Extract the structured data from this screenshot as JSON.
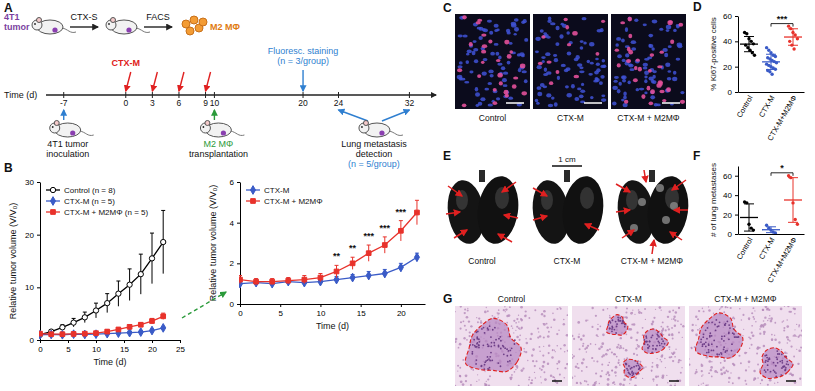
{
  "panel_labels": [
    "A",
    "B",
    "C",
    "D",
    "E",
    "F",
    "G"
  ],
  "schematic": {
    "tumor_label": [
      "4T1",
      "tumor"
    ],
    "steps": [
      "CTX-S",
      "FACS"
    ],
    "cell_label": "M2 MΦ",
    "axis_label": "Time (d)",
    "xlim": [
      -9,
      35
    ],
    "ticks": [
      -7,
      0,
      3,
      6,
      9,
      10,
      20,
      24,
      32
    ],
    "treatment": {
      "label": "CTX-M",
      "days": [
        0,
        3,
        6,
        9
      ]
    },
    "inoculation": {
      "day": -7,
      "label": [
        "4T1 tumor",
        "inoculation"
      ]
    },
    "transplantation": {
      "day": 10,
      "label": [
        "M2 MΦ",
        "transplantation"
      ]
    },
    "staining": {
      "day": 20,
      "label": [
        "Fluoresc. staining",
        "(n = 3/group)"
      ]
    },
    "detection": {
      "days": [
        24,
        32
      ],
      "label": [
        "Lung metastasis",
        "detection",
        "(n = 5/group)"
      ]
    }
  },
  "images": {
    "C": {
      "labels": [
        "Control",
        "CTX-M",
        "CTX-M + M2MΦ"
      ]
    },
    "E": {
      "labels": [
        "Control",
        "CTX-M",
        "CTX-M + M2MΦ"
      ],
      "scale_label": "1 cm"
    },
    "G": {
      "labels": [
        "Control",
        "CTX-M",
        "CTX-M + M2MΦ"
      ]
    }
  },
  "chart_data": [
    {
      "type": "line",
      "x_label": "Time (d)",
      "y_label": "Relative tumor volume (V/V₀)",
      "xlim": [
        0,
        25
      ],
      "ylim": [
        0,
        30
      ],
      "xticks": [
        0,
        5,
        10,
        15,
        20,
        25
      ],
      "yticks": [
        0,
        10,
        20,
        30
      ],
      "legend": "upper left",
      "x": [
        0,
        2,
        4,
        6,
        8,
        10,
        12,
        14,
        16,
        18,
        20,
        22
      ],
      "series": [
        {
          "name": "Control (n = 8)",
          "color": "#000000",
          "marker": "open-circle",
          "values": [
            1,
            1.6,
            2.4,
            3.3,
            4.3,
            5.6,
            7.0,
            8.8,
            10.5,
            12.5,
            15.5,
            18.6
          ],
          "errors": [
            0.1,
            0.3,
            0.5,
            0.8,
            1.0,
            1.4,
            1.8,
            2.4,
            3.0,
            3.8,
            4.8,
            6.0
          ]
        },
        {
          "name": "CTX-M (n = 5)",
          "color": "#3a5bc7",
          "marker": "diamond",
          "values": [
            1,
            1.05,
            1.0,
            1.1,
            1.05,
            1.1,
            1.2,
            1.3,
            1.4,
            1.5,
            1.8,
            2.3
          ],
          "errors": [
            0.1,
            0.1,
            0.1,
            0.1,
            0.1,
            0.1,
            0.15,
            0.15,
            0.2,
            0.2,
            0.2,
            0.2
          ]
        },
        {
          "name": "CTX-M + M2MΦ (n = 5)",
          "color": "#e8322b",
          "marker": "square",
          "values": [
            1.2,
            1.1,
            1.1,
            1.15,
            1.2,
            1.3,
            1.6,
            2.0,
            2.5,
            2.9,
            3.6,
            4.5
          ],
          "errors": [
            0.2,
            0.15,
            0.15,
            0.15,
            0.2,
            0.2,
            0.3,
            0.3,
            0.4,
            0.4,
            0.5,
            0.6
          ]
        }
      ]
    },
    {
      "type": "line",
      "x_label": "Time (d)",
      "y_label": "Relative tumor volume (V/V₀)",
      "xlim": [
        0,
        23
      ],
      "ylim": [
        0,
        6
      ],
      "xticks": [
        0,
        5,
        10,
        15,
        20
      ],
      "yticks": [
        0,
        2,
        4,
        6
      ],
      "legend": "upper left",
      "x": [
        0,
        2,
        4,
        6,
        8,
        10,
        12,
        14,
        16,
        18,
        20,
        22
      ],
      "series": [
        {
          "name": "CTX-M",
          "color": "#3a5bc7",
          "marker": "diamond",
          "values": [
            1,
            1.05,
            1.0,
            1.1,
            1.05,
            1.1,
            1.2,
            1.3,
            1.4,
            1.5,
            1.8,
            2.3
          ],
          "errors": [
            0.1,
            0.1,
            0.1,
            0.1,
            0.1,
            0.1,
            0.15,
            0.15,
            0.2,
            0.2,
            0.2,
            0.2
          ]
        },
        {
          "name": "CTX-M + M2MΦ",
          "color": "#e8322b",
          "marker": "square",
          "values": [
            1.2,
            1.1,
            1.1,
            1.15,
            1.2,
            1.3,
            1.6,
            2.0,
            2.5,
            2.9,
            3.6,
            4.5
          ],
          "errors": [
            0.2,
            0.15,
            0.15,
            0.15,
            0.2,
            0.2,
            0.3,
            0.3,
            0.4,
            0.4,
            0.5,
            0.6
          ]
        }
      ],
      "annotations": [
        {
          "x": 12,
          "y": 2.1,
          "text": "**"
        },
        {
          "x": 14,
          "y": 2.5,
          "text": "**"
        },
        {
          "x": 16,
          "y": 3.1,
          "text": "***"
        },
        {
          "x": 18,
          "y": 3.5,
          "text": "***"
        },
        {
          "x": 20,
          "y": 4.3,
          "text": "***"
        }
      ]
    },
    {
      "type": "dot",
      "y_label": "% Ki67-positive cells",
      "categories": [
        "Control",
        "CTX-M",
        "CTX-M+M2MΦ"
      ],
      "colors": [
        "#000000",
        "#3a5bc7",
        "#e8322b"
      ],
      "ylim": [
        0,
        60
      ],
      "yticks": [
        0,
        20,
        40,
        60
      ],
      "values": [
        [
          47,
          46,
          42,
          40,
          38,
          37,
          35,
          33,
          31,
          29
        ],
        [
          35,
          33,
          31,
          29,
          28,
          27,
          26,
          25,
          24,
          23,
          22,
          21,
          20,
          19,
          18,
          17,
          16,
          14
        ],
        [
          52,
          50,
          47,
          45,
          42,
          40,
          37,
          34
        ]
      ],
      "mean": [
        37.8,
        23.8,
        43.4
      ],
      "sd": [
        6,
        6,
        6.5
      ],
      "annotations": [
        {
          "from": 1,
          "to": 2,
          "y": 54,
          "text": "***"
        }
      ]
    },
    {
      "type": "dot",
      "y_label": "# of lung metastases",
      "categories": [
        "Control",
        "CTX-M",
        "CTX-M+M2MΦ"
      ],
      "colors": [
        "#000000",
        "#3a5bc7",
        "#e8322b"
      ],
      "ylim": [
        0,
        70
      ],
      "yticks": [
        0,
        20,
        40,
        60
      ],
      "values": [
        [
          33,
          32,
          10,
          6,
          4
        ],
        [
          9,
          6,
          4,
          2,
          1
        ],
        [
          60,
          58,
          32,
          15,
          10
        ]
      ],
      "mean": [
        17,
        4.4,
        35
      ],
      "sd": [
        14,
        3,
        23
      ],
      "annotations": [
        {
          "from": 1,
          "to": 2,
          "y": 63,
          "text": "*"
        }
      ]
    }
  ]
}
